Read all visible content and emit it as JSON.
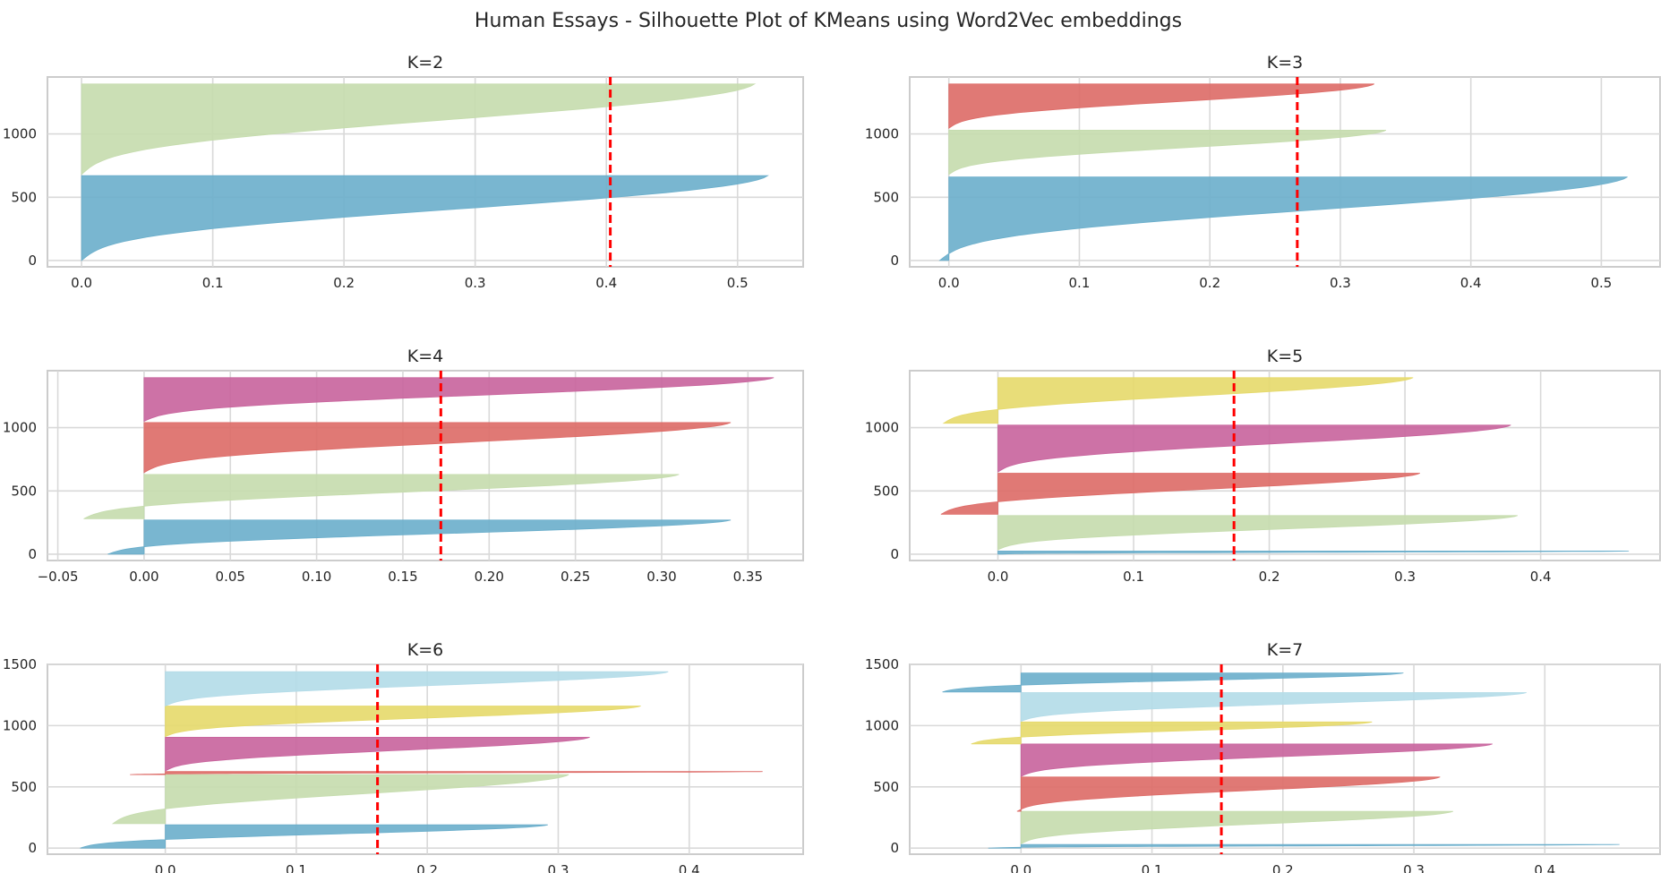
{
  "figure": {
    "title": "Human Essays - Silhouette Plot of KMeans using Word2Vec embeddings"
  },
  "colors": {
    "blue": "#6aaecb",
    "green": "#c5dcad",
    "red": "#dd6a66",
    "magenta": "#c8639c",
    "yellow": "#e5d96a",
    "lightblue": "#b3dbe8",
    "mean_line": "#ff0000",
    "grid": "#d9d9d9",
    "frame": "#cccccc"
  },
  "chart_data": [
    {
      "type": "area",
      "title": "K=2",
      "xlim": [
        -0.026,
        0.55
      ],
      "ylim": [
        -50,
        1450
      ],
      "xticks": [
        "0.0",
        "0.1",
        "0.2",
        "0.3",
        "0.4",
        "0.5"
      ],
      "xtick_values": [
        0,
        0.1,
        0.2,
        0.3,
        0.4,
        0.5
      ],
      "yticks": [
        "0",
        "500",
        "1000"
      ],
      "ytick_values": [
        0,
        500,
        1000
      ],
      "mean_silhouette": 0.403,
      "clusters": [
        {
          "color": "blue",
          "y0": 0,
          "y1": 670,
          "min": 0.0,
          "max": 0.523
        },
        {
          "color": "green",
          "y0": 680,
          "y1": 1395,
          "min": 0.0,
          "max": 0.513
        }
      ]
    },
    {
      "type": "area",
      "title": "K=3",
      "xlim": [
        -0.03,
        0.545
      ],
      "ylim": [
        -50,
        1450
      ],
      "xticks": [
        "0.0",
        "0.1",
        "0.2",
        "0.3",
        "0.4",
        "0.5"
      ],
      "xtick_values": [
        0,
        0.1,
        0.2,
        0.3,
        0.4,
        0.5
      ],
      "yticks": [
        "0",
        "500",
        "1000"
      ],
      "ytick_values": [
        0,
        500,
        1000
      ],
      "mean_silhouette": 0.267,
      "clusters": [
        {
          "color": "blue",
          "y0": 0,
          "y1": 660,
          "min": -0.007,
          "max": 0.52
        },
        {
          "color": "green",
          "y0": 680,
          "y1": 1030,
          "min": 0.0,
          "max": 0.335
        },
        {
          "color": "red",
          "y0": 1045,
          "y1": 1395,
          "min": 0.0,
          "max": 0.326
        }
      ]
    },
    {
      "type": "area",
      "title": "K=4",
      "xlim": [
        -0.056,
        0.382
      ],
      "ylim": [
        -50,
        1450
      ],
      "xticks": [
        "−0.05",
        "0.00",
        "0.05",
        "0.10",
        "0.15",
        "0.20",
        "0.25",
        "0.30",
        "0.35"
      ],
      "xtick_values": [
        -0.05,
        0,
        0.05,
        0.1,
        0.15,
        0.2,
        0.25,
        0.3,
        0.35
      ],
      "yticks": [
        "0",
        "500",
        "1000"
      ],
      "ytick_values": [
        0,
        500,
        1000
      ],
      "mean_silhouette": 0.172,
      "clusters": [
        {
          "color": "blue",
          "y0": 0,
          "y1": 270,
          "min": -0.021,
          "max": 0.34
        },
        {
          "color": "green",
          "y0": 280,
          "y1": 630,
          "min": -0.035,
          "max": 0.31
        },
        {
          "color": "red",
          "y0": 645,
          "y1": 1040,
          "min": 0.0,
          "max": 0.34
        },
        {
          "color": "magenta",
          "y0": 1050,
          "y1": 1395,
          "min": 0.0,
          "max": 0.365
        }
      ]
    },
    {
      "type": "area",
      "title": "K=5",
      "xlim": [
        -0.065,
        0.488
      ],
      "ylim": [
        -50,
        1450
      ],
      "xticks": [
        "0.0",
        "0.1",
        "0.2",
        "0.3",
        "0.4"
      ],
      "xtick_values": [
        0,
        0.1,
        0.2,
        0.3,
        0.4
      ],
      "yticks": [
        "0",
        "500",
        "1000"
      ],
      "ytick_values": [
        0,
        500,
        1000
      ],
      "mean_silhouette": 0.174,
      "clusters": [
        {
          "color": "blue",
          "y0": 0,
          "y1": 25,
          "min": 0.0,
          "max": 0.465
        },
        {
          "color": "green",
          "y0": 35,
          "y1": 305,
          "min": 0.0,
          "max": 0.383
        },
        {
          "color": "red",
          "y0": 315,
          "y1": 640,
          "min": -0.042,
          "max": 0.311
        },
        {
          "color": "magenta",
          "y0": 650,
          "y1": 1020,
          "min": 0.0,
          "max": 0.378
        },
        {
          "color": "yellow",
          "y0": 1035,
          "y1": 1395,
          "min": -0.04,
          "max": 0.306
        }
      ]
    },
    {
      "type": "area",
      "title": "K=6",
      "xlim": [
        -0.09,
        0.487
      ],
      "ylim": [
        -50,
        1500
      ],
      "xticks": [
        "0.0",
        "0.1",
        "0.2",
        "0.3",
        "0.4"
      ],
      "xtick_values": [
        0,
        0.1,
        0.2,
        0.3,
        0.4
      ],
      "yticks": [
        "0",
        "500",
        "1000",
        "1500"
      ],
      "ytick_values": [
        0,
        500,
        1000,
        1500
      ],
      "mean_silhouette": 0.162,
      "clusters": [
        {
          "color": "blue",
          "y0": 0,
          "y1": 190,
          "min": -0.065,
          "max": 0.292
        },
        {
          "color": "green",
          "y0": 200,
          "y1": 600,
          "min": -0.04,
          "max": 0.308
        },
        {
          "color": "red",
          "y0": 600,
          "y1": 625,
          "min": -0.027,
          "max": 0.456
        },
        {
          "color": "magenta",
          "y0": 630,
          "y1": 905,
          "min": 0.0,
          "max": 0.324
        },
        {
          "color": "yellow",
          "y0": 910,
          "y1": 1160,
          "min": 0.0,
          "max": 0.363
        },
        {
          "color": "lightblue",
          "y0": 1160,
          "y1": 1440,
          "min": 0.0,
          "max": 0.384
        }
      ]
    },
    {
      "type": "area",
      "title": "K=7",
      "xlim": [
        -0.085,
        0.488
      ],
      "ylim": [
        -50,
        1500
      ],
      "xticks": [
        "0.0",
        "0.1",
        "0.2",
        "0.3",
        "0.4"
      ],
      "xtick_values": [
        0,
        0.1,
        0.2,
        0.3,
        0.4
      ],
      "yticks": [
        "0",
        "500",
        "1000",
        "1500"
      ],
      "ytick_values": [
        0,
        500,
        1000,
        1500
      ],
      "mean_silhouette": 0.153,
      "clusters": [
        {
          "color": "blue",
          "y0": 0,
          "y1": 30,
          "min": -0.025,
          "max": 0.457
        },
        {
          "color": "green",
          "y0": 35,
          "y1": 300,
          "min": 0.0,
          "max": 0.33
        },
        {
          "color": "red",
          "y0": 300,
          "y1": 580,
          "min": -0.003,
          "max": 0.32
        },
        {
          "color": "magenta",
          "y0": 585,
          "y1": 850,
          "min": 0.0,
          "max": 0.36
        },
        {
          "color": "yellow",
          "y0": 850,
          "y1": 1030,
          "min": -0.038,
          "max": 0.268
        },
        {
          "color": "lightblue",
          "y0": 1035,
          "y1": 1270,
          "min": 0.0,
          "max": 0.386
        },
        {
          "color": "blue",
          "y0": 1275,
          "y1": 1430,
          "min": -0.06,
          "max": 0.292
        }
      ]
    }
  ]
}
